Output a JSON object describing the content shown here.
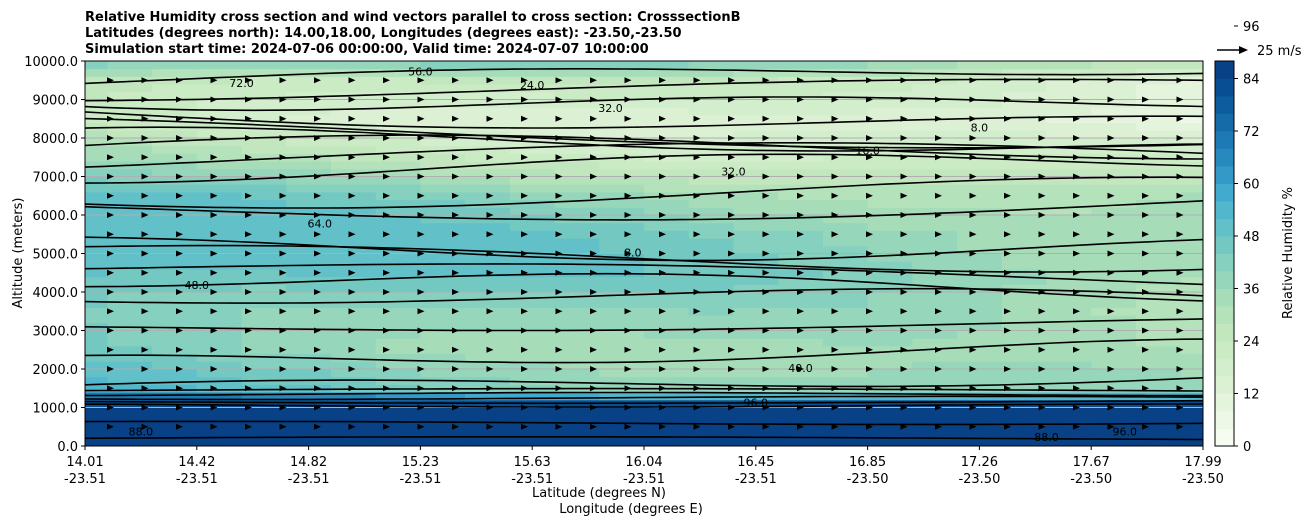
{
  "chart_data": {
    "type": "contour",
    "title": [
      "Relative Humidity cross section and wind vectors parallel to cross section: CrosssectionB",
      "Latitudes (degrees north): 14.00,18.00, Longitudes (degrees east): -23.50,-23.50",
      "Simulation start time: 2024-07-06 00:00:00, Valid time: 2024-07-07 10:00:00"
    ],
    "xlabel": [
      "Latitude (degrees N)",
      "Longitude (degrees E)"
    ],
    "ylabel": "Altitude (meters)",
    "ylim": [
      0,
      10000
    ],
    "xlim": [
      14.01,
      17.99
    ],
    "grid": "horizontal",
    "y_ticks": [
      "0.0",
      "1000.0",
      "2000.0",
      "3000.0",
      "4000.0",
      "5000.0",
      "6000.0",
      "7000.0",
      "8000.0",
      "9000.0",
      "10000.0"
    ],
    "x_ticks": [
      {
        "lat": "14.01",
        "lon": "-23.51"
      },
      {
        "lat": "14.42",
        "lon": "-23.51"
      },
      {
        "lat": "14.82",
        "lon": "-23.51"
      },
      {
        "lat": "15.23",
        "lon": "-23.51"
      },
      {
        "lat": "15.63",
        "lon": "-23.51"
      },
      {
        "lat": "16.04",
        "lon": "-23.51"
      },
      {
        "lat": "16.45",
        "lon": "-23.51"
      },
      {
        "lat": "16.85",
        "lon": "-23.50"
      },
      {
        "lat": "17.26",
        "lon": "-23.50"
      },
      {
        "lat": "17.67",
        "lon": "-23.50"
      },
      {
        "lat": "17.99",
        "lon": "-23.50"
      }
    ],
    "colorbar": {
      "label": "Relative Humidity %",
      "range": [
        0,
        100
      ],
      "ticks": [
        "0",
        "12",
        "24",
        "36",
        "48",
        "60",
        "72",
        "84",
        "96"
      ],
      "level_step": 4,
      "colors": [
        "#f7fcf0",
        "#eef8e7",
        "#e5f5dd",
        "#dcf1d4",
        "#d3eecd",
        "#cbebc5",
        "#c2e7bf",
        "#b4e2bb",
        "#a6dcb8",
        "#96d6bb",
        "#85d0be",
        "#73c8c2",
        "#62c0c8",
        "#52b6cd",
        "#42a9cf",
        "#3599c8",
        "#2889bf",
        "#1e7ab4",
        "#156aa8",
        "#0d5c9e",
        "#084e93",
        "#084186"
      ]
    },
    "quiver_key": "25 m/s",
    "contour_labels": [
      "8.0",
      "16.0",
      "24.0",
      "32.0",
      "40.0",
      "48.0",
      "56.0",
      "64.0",
      "72.0",
      "80.0",
      "88.0",
      "96.0"
    ],
    "rh_profile": [
      {
        "alt": 0,
        "rh": 94
      },
      {
        "alt": 500,
        "rh": 96
      },
      {
        "alt": 1000,
        "rh": 92
      },
      {
        "alt": 1500,
        "rh": 50
      },
      {
        "alt": 2500,
        "rh": 44
      },
      {
        "alt": 3500,
        "rh": 46
      },
      {
        "alt": 4500,
        "rh": 52
      },
      {
        "alt": 5500,
        "rh": 52
      },
      {
        "alt": 6500,
        "rh": 46
      },
      {
        "alt": 7500,
        "rh": 32
      },
      {
        "alt": 8500,
        "rh": 22
      },
      {
        "alt": 9500,
        "rh": 30
      },
      {
        "alt": 10000,
        "rh": 48
      }
    ]
  }
}
